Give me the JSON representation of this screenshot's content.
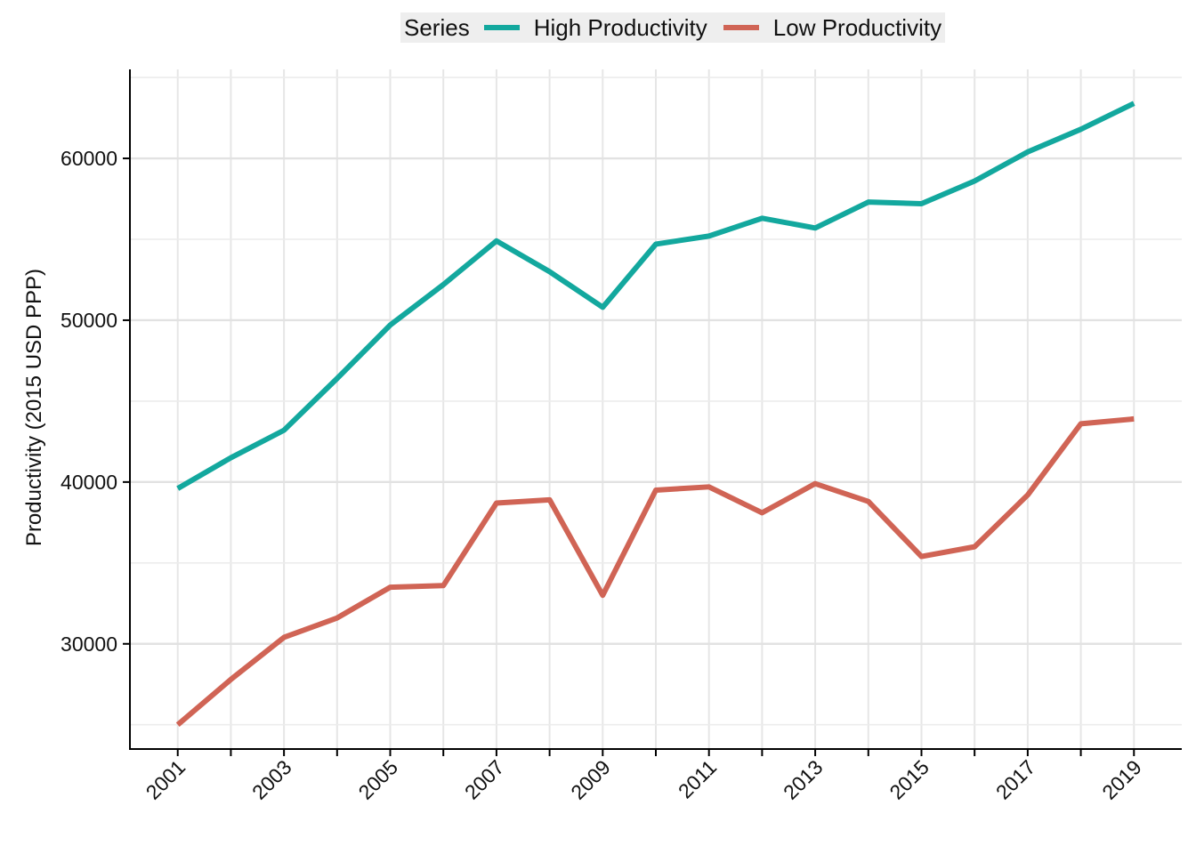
{
  "chart_data": {
    "type": "line",
    "title": "",
    "xlabel": "",
    "ylabel": "Productivity (2015 USD PPP)",
    "legend": {
      "title": "Series",
      "placement": "top"
    },
    "x": [
      2001,
      2002,
      2003,
      2004,
      2005,
      2006,
      2007,
      2008,
      2009,
      2010,
      2011,
      2012,
      2013,
      2014,
      2015,
      2016,
      2017,
      2018,
      2019
    ],
    "x_ticks": [
      "2001",
      "2003",
      "2005",
      "2007",
      "2009",
      "2011",
      "2013",
      "2015",
      "2017",
      "2019"
    ],
    "y_ticks": [
      "30000",
      "40000",
      "50000",
      "60000"
    ],
    "xlim": [
      2000.1,
      2019.9
    ],
    "ylim": [
      23500,
      65500
    ],
    "grid": true,
    "series": [
      {
        "name": "High Productivity",
        "color": "#13a89e",
        "values": [
          39600,
          41500,
          43200,
          46400,
          49700,
          52200,
          54900,
          53000,
          50800,
          54700,
          55200,
          56300,
          55700,
          57300,
          57200,
          58600,
          60400,
          61800,
          63400
        ]
      },
      {
        "name": "Low Productivity",
        "color": "#d06455",
        "values": [
          25000,
          27800,
          30400,
          31600,
          33500,
          33600,
          38700,
          38900,
          33000,
          39500,
          39700,
          38100,
          39900,
          38800,
          35400,
          36000,
          39200,
          43600,
          43900
        ]
      }
    ]
  }
}
